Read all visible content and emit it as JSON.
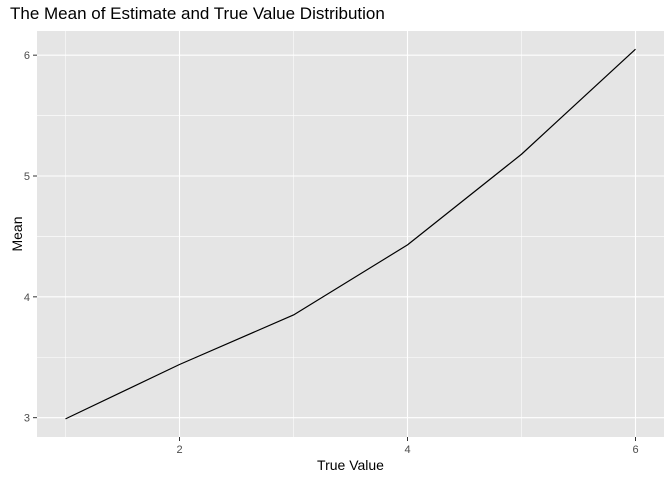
{
  "chart_data": {
    "type": "line",
    "title": "The Mean of Estimate and True Value Distribution",
    "xlabel": "True Value",
    "ylabel": "Mean",
    "x": [
      1,
      2,
      3,
      4,
      5,
      6
    ],
    "series": [
      {
        "values": [
          2.99,
          3.44,
          3.85,
          4.43,
          5.18,
          6.05
        ]
      }
    ],
    "xlim": [
      0.75,
      6.25
    ],
    "ylim": [
      2.84,
      6.2
    ],
    "xticks": [
      2,
      4,
      6
    ],
    "xtick_labels": [
      "2",
      "4",
      "6"
    ],
    "yticks": [
      3,
      4,
      5,
      6
    ],
    "ytick_labels": [
      "3",
      "4",
      "5",
      "6"
    ],
    "grid": true,
    "legend": "none",
    "colors": {
      "panel": "#e5e5e5",
      "grid": "#ffffff",
      "line": "#000000",
      "tick_text": "#4d4d4d"
    }
  }
}
